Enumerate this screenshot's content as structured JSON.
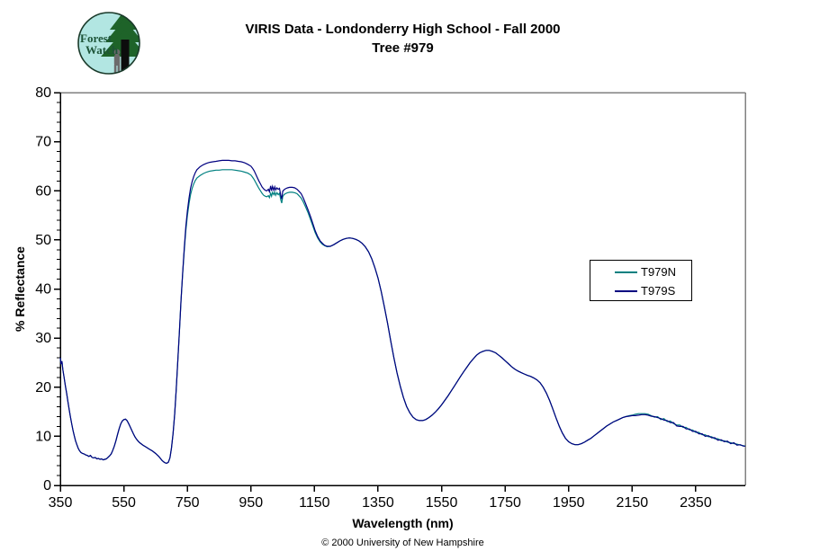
{
  "header": {
    "logo": {
      "line1": "Forest",
      "line2": "Watch",
      "bg_color": "#b2e6e2",
      "ring_color": "#1a3a2a",
      "tree_color": "#1e6329",
      "trunk_color": "#0d0d0d",
      "person_color": "#6b6b6b",
      "text_color": "#1d5438"
    },
    "title_line1": "VIRIS Data - Londonderry High School - Fall 2000",
    "title_line2": "Tree #979"
  },
  "footer": {
    "copyright": "© 2000 University of New Hampshire"
  },
  "chart_data": {
    "type": "line",
    "title": "VIRIS Data - Londonderry High School - Fall 2000 Tree #979",
    "xlabel": "Wavelength (nm)",
    "ylabel": "% Reflectance",
    "xlim": [
      350,
      2506
    ],
    "ylim": [
      0,
      80
    ],
    "x_ticks": [
      350,
      550,
      750,
      950,
      1150,
      1350,
      1550,
      1750,
      1950,
      2150,
      2350
    ],
    "y_ticks": [
      0,
      10,
      20,
      30,
      40,
      50,
      60,
      70,
      80
    ],
    "y_minor_step": 2,
    "grid": false,
    "legend_position": "right-middle",
    "colors": {
      "axis": "#000000",
      "plot_border": "#808080"
    },
    "x": [
      350,
      352,
      355,
      358,
      362,
      366,
      370,
      374,
      378,
      382,
      386,
      390,
      394,
      398,
      402,
      406,
      410,
      415,
      420,
      425,
      430,
      435,
      440,
      445,
      450,
      455,
      460,
      465,
      470,
      475,
      480,
      485,
      490,
      495,
      500,
      505,
      510,
      515,
      520,
      525,
      530,
      535,
      540,
      545,
      550,
      555,
      560,
      565,
      570,
      575,
      580,
      585,
      590,
      595,
      600,
      610,
      620,
      630,
      640,
      650,
      660,
      665,
      670,
      675,
      680,
      685,
      690,
      695,
      700,
      705,
      710,
      715,
      720,
      725,
      730,
      735,
      740,
      745,
      750,
      755,
      760,
      765,
      770,
      775,
      780,
      790,
      800,
      810,
      820,
      830,
      840,
      850,
      860,
      870,
      880,
      890,
      900,
      910,
      920,
      930,
      940,
      950,
      955,
      960,
      965,
      970,
      975,
      980,
      985,
      990,
      995,
      1000,
      1005,
      1008,
      1012,
      1015,
      1018,
      1022,
      1025,
      1028,
      1032,
      1036,
      1040,
      1044,
      1047,
      1050,
      1054,
      1058,
      1065,
      1072,
      1080,
      1088,
      1095,
      1100,
      1108,
      1115,
      1122,
      1130,
      1138,
      1145,
      1152,
      1160,
      1168,
      1175,
      1182,
      1190,
      1200,
      1210,
      1220,
      1230,
      1240,
      1250,
      1260,
      1270,
      1280,
      1290,
      1300,
      1310,
      1320,
      1330,
      1340,
      1350,
      1360,
      1370,
      1380,
      1390,
      1400,
      1410,
      1420,
      1430,
      1440,
      1450,
      1460,
      1470,
      1480,
      1490,
      1500,
      1510,
      1520,
      1530,
      1540,
      1550,
      1560,
      1570,
      1580,
      1590,
      1600,
      1610,
      1620,
      1630,
      1640,
      1650,
      1660,
      1670,
      1680,
      1690,
      1700,
      1710,
      1720,
      1730,
      1740,
      1750,
      1760,
      1770,
      1780,
      1790,
      1800,
      1810,
      1820,
      1830,
      1840,
      1850,
      1860,
      1870,
      1880,
      1890,
      1900,
      1910,
      1920,
      1930,
      1940,
      1950,
      1960,
      1970,
      1980,
      1990,
      2000,
      2010,
      2020,
      2030,
      2040,
      2050,
      2060,
      2070,
      2080,
      2090,
      2100,
      2110,
      2120,
      2130,
      2140,
      2150,
      2160,
      2170,
      2180,
      2190,
      2200,
      2210,
      2220,
      2230,
      2240,
      2250,
      2260,
      2270,
      2280,
      2290,
      2300,
      2310,
      2320,
      2330,
      2340,
      2350,
      2360,
      2370,
      2380,
      2390,
      2400,
      2410,
      2420,
      2430,
      2440,
      2450,
      2460,
      2470,
      2480,
      2490,
      2500,
      2506
    ],
    "series": [
      {
        "name": "T979N",
        "color": "#008080",
        "values": [
          26.0,
          24.7,
          25.3,
          23.6,
          22.0,
          20.3,
          18.7,
          17.0,
          15.4,
          13.9,
          12.5,
          11.2,
          10.1,
          9.1,
          8.3,
          7.6,
          7.1,
          6.7,
          6.5,
          6.4,
          6.2,
          6.1,
          5.9,
          6.1,
          5.7,
          5.6,
          5.7,
          5.4,
          5.5,
          5.3,
          5.4,
          5.2,
          5.3,
          5.4,
          5.7,
          6.0,
          6.4,
          7.1,
          8.0,
          9.1,
          10.3,
          11.5,
          12.5,
          13.1,
          13.4,
          13.5,
          13.2,
          12.6,
          11.9,
          11.2,
          10.5,
          9.9,
          9.4,
          9.0,
          8.7,
          8.2,
          7.8,
          7.4,
          7.0,
          6.5,
          5.9,
          5.5,
          5.1,
          4.8,
          4.6,
          4.5,
          4.7,
          5.6,
          7.6,
          10.6,
          14.6,
          19.6,
          25.6,
          31.6,
          37.6,
          43.0,
          47.8,
          51.8,
          55.0,
          57.4,
          59.2,
          60.5,
          61.4,
          62.1,
          62.6,
          63.1,
          63.5,
          63.8,
          64.0,
          64.1,
          64.2,
          64.2,
          64.3,
          64.3,
          64.3,
          64.3,
          64.2,
          64.1,
          64.0,
          63.8,
          63.6,
          63.2,
          62.8,
          62.3,
          61.7,
          61.1,
          60.5,
          60.0,
          59.5,
          59.1,
          58.9,
          58.8,
          59.0,
          58.6,
          59.5,
          58.9,
          59.7,
          59.2,
          59.7,
          59.1,
          59.6,
          59.2,
          59.5,
          58.1,
          57.5,
          58.8,
          59.2,
          59.4,
          59.6,
          59.7,
          59.7,
          59.6,
          59.4,
          59.1,
          58.5,
          57.7,
          56.7,
          55.5,
          54.1,
          52.8,
          51.5,
          50.4,
          49.6,
          49.1,
          48.8,
          48.6,
          48.7,
          49.0,
          49.4,
          49.8,
          50.1,
          50.3,
          50.4,
          50.3,
          50.1,
          49.8,
          49.3,
          48.6,
          47.6,
          46.2,
          44.4,
          42.2,
          39.5,
          36.4,
          33.0,
          29.4,
          26.0,
          22.9,
          20.2,
          17.9,
          16.1,
          14.8,
          13.9,
          13.4,
          13.2,
          13.2,
          13.4,
          13.8,
          14.3,
          14.9,
          15.6,
          16.4,
          17.3,
          18.2,
          19.2,
          20.2,
          21.2,
          22.2,
          23.2,
          24.1,
          25.0,
          25.8,
          26.5,
          27.0,
          27.3,
          27.5,
          27.5,
          27.3,
          27.0,
          26.5,
          26.0,
          25.4,
          24.8,
          24.2,
          23.7,
          23.3,
          23.0,
          22.7,
          22.4,
          22.2,
          21.9,
          21.5,
          20.9,
          20.0,
          18.8,
          17.3,
          15.6,
          13.8,
          12.1,
          10.7,
          9.6,
          8.9,
          8.5,
          8.3,
          8.3,
          8.5,
          8.8,
          9.2,
          9.6,
          10.1,
          10.6,
          11.1,
          11.6,
          12.1,
          12.5,
          12.9,
          13.2,
          13.5,
          13.8,
          14.0,
          14.2,
          14.3,
          14.5,
          14.6,
          14.6,
          14.6,
          14.5,
          14.2,
          13.9,
          14.0,
          13.4,
          13.6,
          13.0,
          13.1,
          12.6,
          12.3,
          12.3,
          11.8,
          11.8,
          11.3,
          11.3,
          10.8,
          10.8,
          10.3,
          10.3,
          9.9,
          9.9,
          9.5,
          9.5,
          9.1,
          9.1,
          8.8,
          8.7,
          8.5,
          8.4,
          8.2,
          8.1,
          8.0
        ]
      },
      {
        "name": "T979S",
        "color": "#000080",
        "values": [
          26.0,
          24.7,
          25.3,
          23.6,
          22.0,
          20.3,
          18.7,
          17.0,
          15.4,
          13.9,
          12.5,
          11.2,
          10.1,
          9.1,
          8.3,
          7.6,
          7.1,
          6.7,
          6.5,
          6.4,
          6.2,
          6.1,
          5.9,
          6.1,
          5.7,
          5.6,
          5.7,
          5.4,
          5.5,
          5.3,
          5.4,
          5.2,
          5.3,
          5.4,
          5.7,
          6.0,
          6.4,
          7.1,
          8.0,
          9.1,
          10.3,
          11.5,
          12.5,
          13.1,
          13.4,
          13.5,
          13.2,
          12.6,
          11.9,
          11.2,
          10.5,
          9.9,
          9.4,
          9.0,
          8.7,
          8.2,
          7.8,
          7.4,
          7.0,
          6.5,
          5.9,
          5.5,
          5.1,
          4.8,
          4.6,
          4.5,
          4.7,
          5.6,
          7.6,
          10.6,
          14.6,
          19.6,
          25.6,
          31.6,
          37.7,
          43.2,
          48.3,
          52.6,
          55.9,
          58.5,
          60.5,
          61.9,
          62.9,
          63.7,
          64.3,
          64.9,
          65.3,
          65.6,
          65.8,
          65.9,
          66.0,
          66.1,
          66.2,
          66.2,
          66.2,
          66.1,
          66.1,
          66.0,
          65.9,
          65.7,
          65.4,
          65.0,
          64.6,
          64.1,
          63.4,
          62.7,
          62.0,
          61.4,
          60.8,
          60.4,
          60.1,
          60.0,
          60.3,
          59.8,
          61.0,
          60.0,
          60.9,
          60.1,
          60.8,
          60.2,
          60.6,
          60.3,
          60.5,
          59.0,
          58.3,
          59.9,
          60.2,
          60.4,
          60.6,
          60.7,
          60.7,
          60.6,
          60.3,
          60.0,
          59.4,
          58.5,
          57.4,
          56.1,
          54.7,
          53.3,
          51.9,
          50.7,
          49.8,
          49.3,
          48.9,
          48.7,
          48.7,
          49.0,
          49.4,
          49.8,
          50.1,
          50.3,
          50.4,
          50.3,
          50.1,
          49.8,
          49.3,
          48.6,
          47.6,
          46.2,
          44.4,
          42.2,
          39.5,
          36.4,
          33.0,
          29.4,
          26.0,
          22.9,
          20.2,
          17.9,
          16.1,
          14.8,
          13.9,
          13.4,
          13.2,
          13.2,
          13.4,
          13.8,
          14.3,
          14.9,
          15.6,
          16.4,
          17.3,
          18.2,
          19.2,
          20.2,
          21.2,
          22.2,
          23.2,
          24.1,
          25.0,
          25.8,
          26.5,
          27.0,
          27.3,
          27.5,
          27.5,
          27.3,
          27.0,
          26.5,
          26.0,
          25.4,
          24.8,
          24.2,
          23.7,
          23.3,
          23.0,
          22.7,
          22.4,
          22.2,
          21.9,
          21.5,
          20.9,
          20.0,
          18.8,
          17.3,
          15.6,
          13.8,
          12.1,
          10.7,
          9.6,
          8.9,
          8.5,
          8.3,
          8.3,
          8.5,
          8.8,
          9.2,
          9.6,
          10.1,
          10.6,
          11.1,
          11.6,
          12.1,
          12.5,
          12.9,
          13.2,
          13.5,
          13.8,
          14.0,
          14.1,
          14.2,
          14.2,
          14.3,
          14.4,
          14.4,
          14.3,
          14.1,
          14.0,
          13.8,
          13.6,
          13.3,
          13.2,
          12.8,
          12.8,
          12.1,
          12.0,
          12.0,
          11.5,
          11.5,
          11.0,
          11.0,
          10.5,
          10.5,
          10.0,
          10.1,
          9.7,
          9.7,
          9.2,
          9.3,
          8.9,
          9.0,
          8.5,
          8.7,
          8.2,
          8.3,
          8.0,
          8.0
        ]
      }
    ]
  }
}
